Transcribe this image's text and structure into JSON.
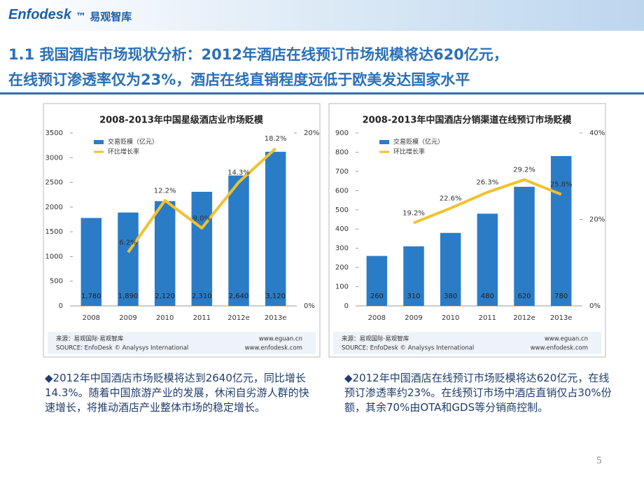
{
  "header": {
    "logo": "Enfodesk",
    "logo_sub": "™ 易观智库",
    "title_lines": [
      "1.1 我国酒店市场现状分析：2012年酒店在线预订市场规模将达620亿元，",
      "在线预订渗透率仅为23%，酒店在线直销程度远低于欧美发达国家水平"
    ]
  },
  "chart_data": [
    {
      "type": "bar",
      "title": "2008-2013年中国星级酒店业市场贬模",
      "categories": [
        "2008",
        "2009",
        "2010",
        "2011",
        "2012e",
        "2013e"
      ],
      "series": [
        {
          "name": "交易贬模（亿元）",
          "color": "#2a7cc7",
          "values": [
            1780,
            1890,
            2120,
            2310,
            2640,
            3120
          ],
          "value_labels": [
            "1,780",
            "1,890",
            "2,120",
            "2,310",
            "2,640",
            "3,120"
          ]
        },
        {
          "name": "环比增长率",
          "color": "#f2c12e",
          "type": "line",
          "axis": "y2",
          "values": [
            null,
            6.2,
            12.2,
            9.0,
            14.3,
            18.2
          ],
          "value_labels": [
            null,
            "6.2%",
            "12.2%",
            "9.0%",
            "14.3%",
            "18.2%"
          ]
        }
      ],
      "ylim": [
        0,
        3500
      ],
      "yticks": [
        0,
        500,
        1000,
        1500,
        2000,
        2500,
        3000,
        3500
      ],
      "y2lim": [
        0,
        20
      ],
      "y2ticks": [
        {
          "value": 0,
          "label": "0%"
        },
        {
          "value": 20,
          "label": "20%"
        }
      ],
      "source": [
        "来源：易观国际·易观智库",
        "SOURCE: EnfoDesk © Analysys International"
      ],
      "websites": [
        "www.eguan.cn",
        "www.enfodesk.com"
      ]
    },
    {
      "type": "bar",
      "title": "2008-2013年中国酒店分销渠道在线预订市场贬模",
      "categories": [
        "2008",
        "2009",
        "2010",
        "2011",
        "2012e",
        "2013e"
      ],
      "series": [
        {
          "name": "交易贬模（亿元）",
          "color": "#2a7cc7",
          "values": [
            260,
            310,
            380,
            480,
            620,
            780
          ]
        },
        {
          "name": "环比增长率",
          "color": "#f2c12e",
          "type": "line",
          "axis": "y2",
          "values": [
            null,
            19.2,
            22.6,
            26.3,
            29.2,
            25.8
          ],
          "value_labels": [
            null,
            "19.2%",
            "22.6%",
            "26.3%",
            "29.2%",
            "25.8%"
          ]
        }
      ],
      "ylim": [
        0,
        900
      ],
      "yticks": [
        0,
        100,
        200,
        300,
        400,
        500,
        600,
        700,
        800,
        900
      ],
      "y2lim": [
        0,
        40
      ],
      "y2ticks": [
        {
          "value": 0,
          "label": "0%"
        },
        {
          "value": 20,
          "label": "20%"
        },
        {
          "value": 40,
          "label": "40%"
        }
      ],
      "source": [
        "来源：易观国际·易观智库",
        "SOURCE: EnfoDesk © Analysys International"
      ],
      "websites": [
        "www.eguan.cn",
        "www.enfodesk.com"
      ]
    }
  ],
  "notes": [
    "◆2012年中国酒店市场贬模将达到2640亿元，同比增长14.3%。随着中国旅游产业的发展，休闲自劣游人群的快速增长，将推动酒店产业整体市场的稳定增长。",
    "◆2012年中国酒店在线预订市场贬模将达620亿元，在线预订渗透率约23%。在线预订市场中酒店直销仅占30%份额，其余70%由OTA和GDS等分销商控制。"
  ],
  "page_number": "5"
}
